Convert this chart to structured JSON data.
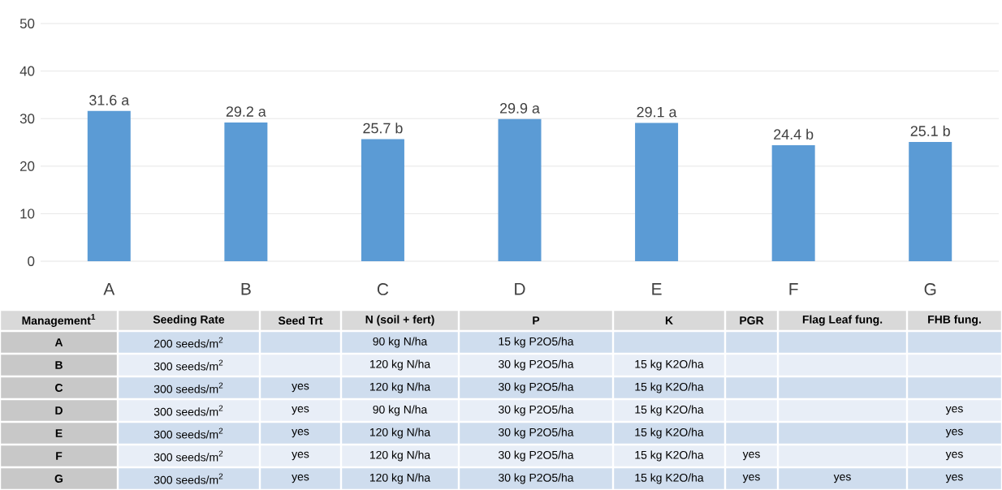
{
  "chart_data": [
    {
      "type": "bar",
      "categories": [
        "A",
        "B",
        "C",
        "D",
        "E",
        "F",
        "G"
      ],
      "values": [
        31.6,
        29.2,
        25.7,
        29.9,
        29.1,
        24.4,
        25.1
      ],
      "value_labels": [
        "31.6 a",
        "29.2 a",
        "25.7 b",
        "29.9 a",
        "29.1 a",
        "24.4 b",
        "25.1 b"
      ],
      "color": "#5b9bd5",
      "ylim": [
        0,
        50
      ],
      "yticks": [
        0,
        10,
        20,
        30,
        40,
        50
      ],
      "grid": "y"
    },
    {
      "type": "other",
      "categories": [
        "Management$^{1}$",
        "Seeding Rate",
        "Seed Trt",
        "N (soil + fert)",
        "P",
        "K",
        "PGR",
        "Flag Leaf fung.",
        "FHB fung."
      ],
      "y_categories": [
        "A",
        "B",
        "C",
        "D",
        "E",
        "F",
        "G"
      ],
      "cell_labels": [
        [
          "200 seeds/m$^{2}$",
          null,
          "90 kg N/ha",
          "15 kg P2O5/ha",
          null,
          null,
          null,
          null
        ],
        [
          "300 seeds/m$^{2}$",
          null,
          "120 kg N/ha",
          "30 kg P2O5/ha",
          "15 kg K2O/ha",
          null,
          null,
          null
        ],
        [
          "300 seeds/m$^{2}$",
          "yes",
          "120 kg N/ha",
          "30 kg P2O5/ha",
          "15 kg K2O/ha",
          null,
          null,
          null
        ],
        [
          "300 seeds/m$^{2}$",
          "yes",
          "90 kg N/ha",
          "30 kg P2O5/ha",
          "15 kg K2O/ha",
          null,
          null,
          "yes"
        ],
        [
          "300 seeds/m$^{2}$",
          "yes",
          "120 kg N/ha",
          "30 kg P2O5/ha",
          "15 kg K2O/ha",
          null,
          null,
          "yes"
        ],
        [
          "300 seeds/m$^{2}$",
          "yes",
          "120 kg N/ha",
          "30 kg P2O5/ha",
          "15 kg K2O/ha",
          "yes",
          null,
          "yes"
        ],
        [
          "300 seeds/m$^{2}$",
          "yes",
          "120 kg N/ha",
          "30 kg P2O5/ha",
          "15 kg K2O/ha",
          "yes",
          "yes",
          "yes"
        ]
      ]
    }
  ]
}
